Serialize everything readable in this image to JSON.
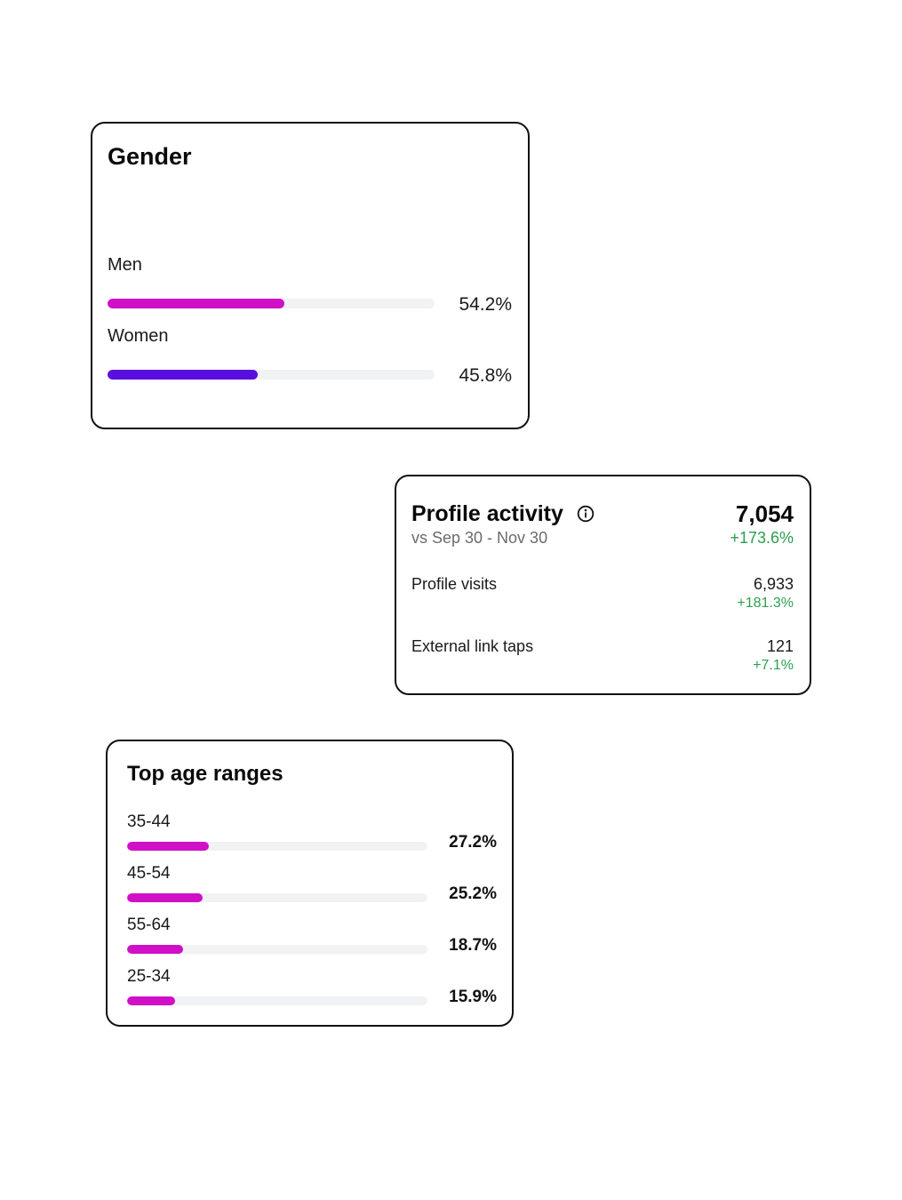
{
  "colors": {
    "men": "#d10fc7",
    "women": "#5a0fe0",
    "age": "#d10fc7",
    "positive": "#2e9e4f"
  },
  "gender": {
    "title": "Gender",
    "rows": [
      {
        "label": "Men",
        "value": "54.2%",
        "fraction": 0.542
      },
      {
        "label": "Women",
        "value": "45.8%",
        "fraction": 0.458
      }
    ]
  },
  "profile_activity": {
    "title": "Profile activity",
    "info_icon": "info-icon",
    "subtitle": "vs Sep 30 - Nov 30",
    "total": "7,054",
    "change": "+173.6%",
    "metrics": [
      {
        "label": "Profile visits",
        "value": "6,933",
        "change": "+181.3%"
      },
      {
        "label": "External link taps",
        "value": "121",
        "change": "+7.1%"
      }
    ]
  },
  "age_ranges": {
    "title": "Top age ranges",
    "rows": [
      {
        "label": "35-44",
        "value": "27.2%",
        "fraction": 0.272
      },
      {
        "label": "45-54",
        "value": "25.2%",
        "fraction": 0.252
      },
      {
        "label": "55-64",
        "value": "18.7%",
        "fraction": 0.187
      },
      {
        "label": "25-34",
        "value": "15.9%",
        "fraction": 0.159
      }
    ]
  }
}
